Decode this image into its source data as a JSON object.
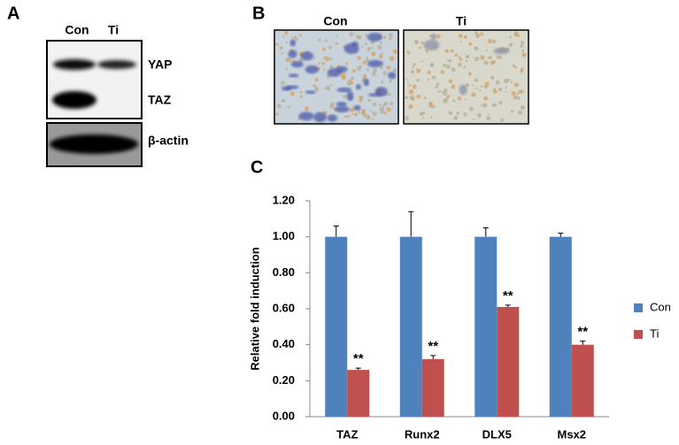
{
  "panels": {
    "A": {
      "letter": "A",
      "lanes": [
        "Con",
        "Ti"
      ],
      "proteins": [
        "YAP",
        "TAZ",
        "β-actin"
      ]
    },
    "B": {
      "letter": "B",
      "labels": [
        "Con",
        "Ti"
      ]
    },
    "C": {
      "letter": "C"
    }
  },
  "chart_data": {
    "type": "bar",
    "y_label": "Relative fold induction",
    "categories": [
      "TAZ",
      "Runx2",
      "DLX5",
      "Msx2"
    ],
    "series": [
      {
        "name": "Con",
        "color": "#4f81bd",
        "values": [
          1.0,
          1.0,
          1.0,
          1.0
        ],
        "errors": [
          0.06,
          0.14,
          0.05,
          0.02
        ]
      },
      {
        "name": "Ti",
        "color": "#c0504d",
        "values": [
          0.26,
          0.32,
          0.61,
          0.4
        ],
        "errors": [
          0.01,
          0.02,
          0.01,
          0.02
        ],
        "annotations": [
          "**",
          "**",
          "**",
          "**"
        ]
      }
    ],
    "ylim": [
      0,
      1.2
    ],
    "yticks": [
      {
        "value": 0,
        "label": "0.00"
      },
      {
        "value": 0.2,
        "label": "0.20"
      },
      {
        "value": 0.4,
        "label": "0.40"
      },
      {
        "value": 0.6,
        "label": "0.60"
      },
      {
        "value": 0.8,
        "label": "0.80"
      },
      {
        "value": 1.0,
        "label": "1.00"
      },
      {
        "value": 1.2,
        "label": "1.20"
      }
    ],
    "legend": "right"
  }
}
